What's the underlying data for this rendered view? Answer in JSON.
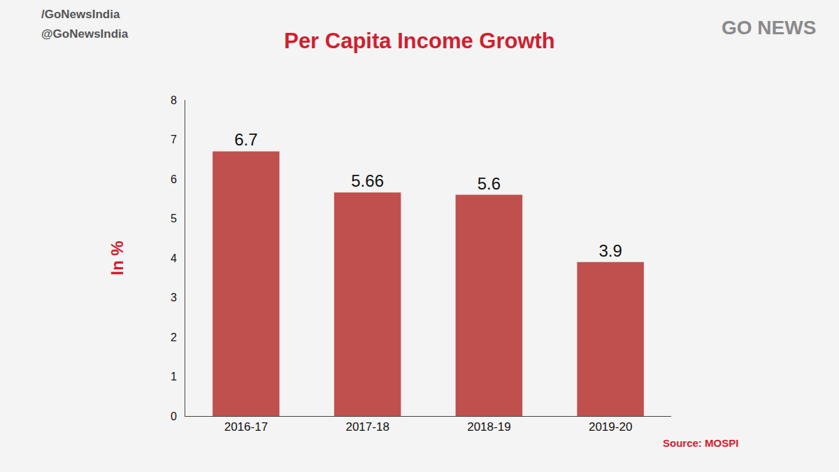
{
  "chart_data": {
    "type": "bar",
    "title": "Per Capita Income Growth",
    "y_label": "In %",
    "categories": [
      "2016-17",
      "2017-18",
      "2018-19",
      "2019-20"
    ],
    "values": [
      6.7,
      5.66,
      5.6,
      3.9
    ],
    "color": "#c0504d",
    "ylim": [
      0,
      8
    ],
    "yticks": [
      0,
      1,
      2,
      3,
      4,
      5,
      6,
      7,
      8
    ],
    "grid": false,
    "data_labels": true,
    "annotations": [
      "/GoNewsIndia",
      "@GoNewsIndia",
      "GO NEWS",
      "Source: MOSPI"
    ]
  }
}
